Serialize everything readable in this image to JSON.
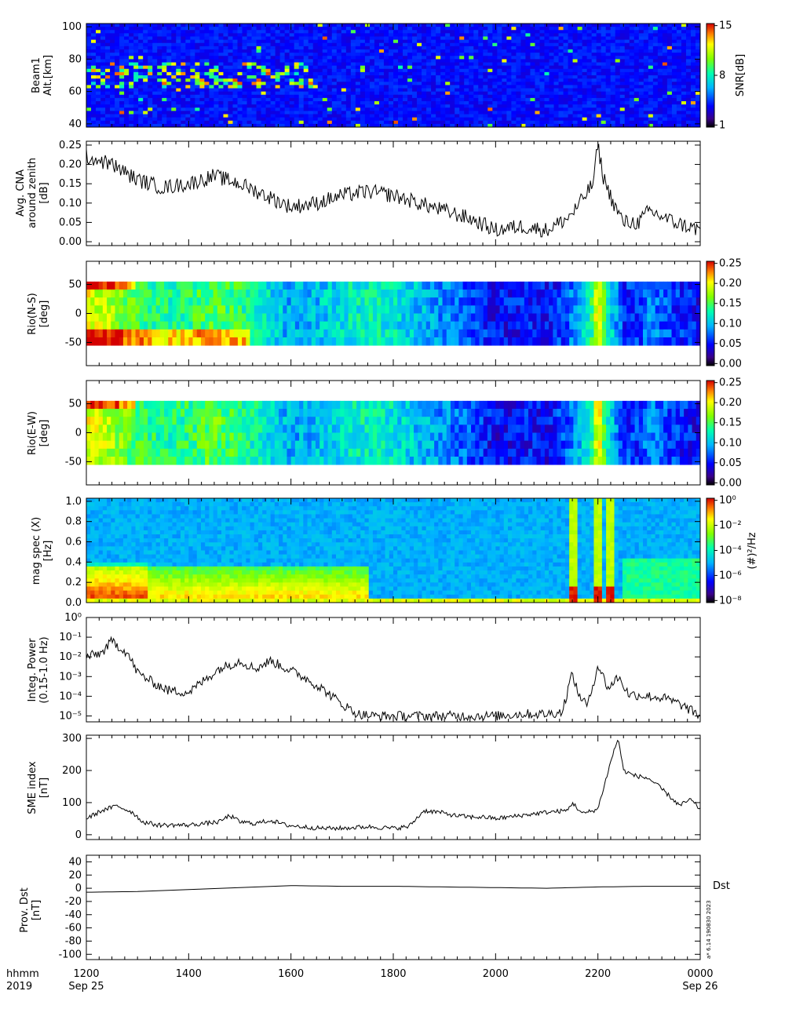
{
  "bottom_axis": {
    "row_labels": [
      "hhmm",
      "2019"
    ],
    "ticks": [
      {
        "time": "1200",
        "date": "Sep 25"
      },
      {
        "time": "1400",
        "date": ""
      },
      {
        "time": "1600",
        "date": ""
      },
      {
        "time": "1800",
        "date": ""
      },
      {
        "time": "2000",
        "date": ""
      },
      {
        "time": "2200",
        "date": ""
      },
      {
        "time": "0000",
        "date": "Sep 26"
      }
    ]
  },
  "stamp": "a* 6.14 190830 2023",
  "chart_data": [
    {
      "type": "heatmap",
      "ylabel": [
        "Beam1",
        "Alt.[km]"
      ],
      "yticks": [
        40,
        60,
        80,
        100
      ],
      "ylim": [
        38,
        102
      ],
      "colorbar": {
        "label": "SNR[dB]",
        "ticks": [
          "1",
          "8",
          "15"
        ]
      },
      "description_levels": "low background SNR with enhanced layer near 65-75 km between 1200 and 1630"
    },
    {
      "type": "line",
      "ylabel": [
        "Avg. CNA",
        "around zenith",
        "[dB]"
      ],
      "yticks": [
        "0.00",
        "0.05",
        "0.10",
        "0.15",
        "0.20",
        "0.25"
      ],
      "ylim": [
        -0.01,
        0.26
      ],
      "x": [
        12.0,
        12.5,
        13.0,
        13.5,
        14.0,
        14.5,
        15.0,
        15.5,
        16.0,
        16.5,
        17.0,
        17.5,
        18.0,
        18.5,
        19.0,
        19.5,
        20.0,
        20.5,
        21.0,
        21.4,
        21.6,
        21.9,
        22.0,
        22.1,
        22.3,
        22.5,
        22.8,
        23.0,
        23.5,
        24.0
      ],
      "y": [
        0.22,
        0.2,
        0.16,
        0.14,
        0.15,
        0.17,
        0.15,
        0.12,
        0.09,
        0.1,
        0.12,
        0.13,
        0.12,
        0.1,
        0.08,
        0.06,
        0.03,
        0.04,
        0.03,
        0.06,
        0.09,
        0.15,
        0.25,
        0.17,
        0.1,
        0.05,
        0.05,
        0.08,
        0.05,
        0.03
      ]
    },
    {
      "type": "heatmap",
      "ylabel": [
        "Rio(N-S)",
        "[deg]"
      ],
      "yticks": [
        -50,
        0,
        50
      ],
      "ylim": [
        -90,
        90
      ],
      "colorbar": {
        "label": "",
        "ticks": [
          "0.00",
          "0.05",
          "0.10",
          "0.15",
          "0.20",
          "0.25"
        ]
      }
    },
    {
      "type": "heatmap",
      "ylabel": [
        "Rio(E-W)",
        "[deg]"
      ],
      "yticks": [
        -50,
        0,
        50
      ],
      "ylim": [
        -90,
        90
      ],
      "colorbar": {
        "label": "",
        "ticks": [
          "0.00",
          "0.05",
          "0.10",
          "0.15",
          "0.20",
          "0.25"
        ]
      }
    },
    {
      "type": "heatmap",
      "ylabel": [
        "mag spec (X)",
        "[Hz]"
      ],
      "yticks": [
        "0.0",
        "0.2",
        "0.4",
        "0.6",
        "0.8",
        "1.0"
      ],
      "ylim": [
        0,
        1.03
      ],
      "colorbar": {
        "label": "(#)²/Hz",
        "ticks": [
          "10⁻⁸",
          "10⁻⁶",
          "10⁻⁴",
          "10⁻²",
          "10⁰"
        ]
      }
    },
    {
      "type": "line",
      "ylabel": [
        "Integ. Power",
        "(0.15-1.0 Hz)"
      ],
      "yticks": [
        "10⁻⁵",
        "10⁻⁴",
        "10⁻³",
        "10⁻²",
        "10⁻¹",
        "10⁰"
      ],
      "log_y": true,
      "ylim_exp": [
        -5.3,
        0
      ],
      "x": [
        12.0,
        12.3,
        12.5,
        12.8,
        13.0,
        13.3,
        13.6,
        14.0,
        14.3,
        14.6,
        15.0,
        15.3,
        15.6,
        16.0,
        16.3,
        16.6,
        17.0,
        17.3,
        17.6,
        18.0,
        18.5,
        19.0,
        19.5,
        20.0,
        20.5,
        21.0,
        21.3,
        21.5,
        21.6,
        21.8,
        22.0,
        22.2,
        22.4,
        22.6,
        23.0,
        23.3,
        23.6,
        24.0
      ],
      "y": [
        -2.0,
        -1.8,
        -1.2,
        -1.8,
        -2.8,
        -3.3,
        -3.7,
        -3.8,
        -3.2,
        -2.6,
        -2.2,
        -2.6,
        -2.2,
        -2.7,
        -3.1,
        -3.6,
        -4.4,
        -4.9,
        -5.0,
        -5.0,
        -5.0,
        -5.0,
        -5.0,
        -5.0,
        -4.9,
        -4.9,
        -4.8,
        -2.8,
        -3.8,
        -4.5,
        -2.4,
        -3.6,
        -3.0,
        -3.9,
        -4.0,
        -4.1,
        -4.4,
        -5.0
      ]
    },
    {
      "type": "line",
      "ylabel": [
        "SME index",
        "[nT]"
      ],
      "yticks": [
        0,
        100,
        200,
        300
      ],
      "ylim": [
        -15,
        310
      ],
      "x": [
        12.0,
        12.3,
        12.6,
        12.9,
        13.1,
        13.4,
        13.7,
        14.0,
        14.3,
        14.6,
        14.8,
        15.0,
        15.3,
        15.6,
        15.9,
        16.2,
        16.6,
        17.0,
        17.5,
        18.0,
        18.3,
        18.6,
        18.9,
        19.2,
        19.5,
        19.8,
        20.0,
        20.5,
        21.0,
        21.4,
        21.5,
        21.7,
        22.0,
        22.1,
        22.3,
        22.4,
        22.5,
        22.7,
        23.0,
        23.3,
        23.6,
        23.8,
        24.0
      ],
      "y": [
        50,
        75,
        90,
        70,
        40,
        30,
        30,
        30,
        35,
        40,
        60,
        40,
        35,
        45,
        30,
        25,
        20,
        20,
        25,
        20,
        25,
        75,
        70,
        60,
        55,
        55,
        50,
        60,
        70,
        75,
        100,
        65,
        80,
        140,
        255,
        300,
        200,
        185,
        175,
        135,
        90,
        110,
        80
      ]
    },
    {
      "type": "line",
      "ylabel": [
        "Prov. Dst",
        "[nT]"
      ],
      "yticks": [
        -100,
        -80,
        -60,
        -40,
        -20,
        0,
        20,
        40
      ],
      "ylim": [
        -108,
        50
      ],
      "series_label": "Dst",
      "x": [
        12,
        13,
        14,
        15,
        16,
        17,
        18,
        19,
        20,
        21,
        22,
        23,
        24
      ],
      "y": [
        -6,
        -5,
        -2,
        1,
        4,
        3,
        3,
        2,
        1,
        0,
        2,
        3,
        3
      ]
    }
  ]
}
